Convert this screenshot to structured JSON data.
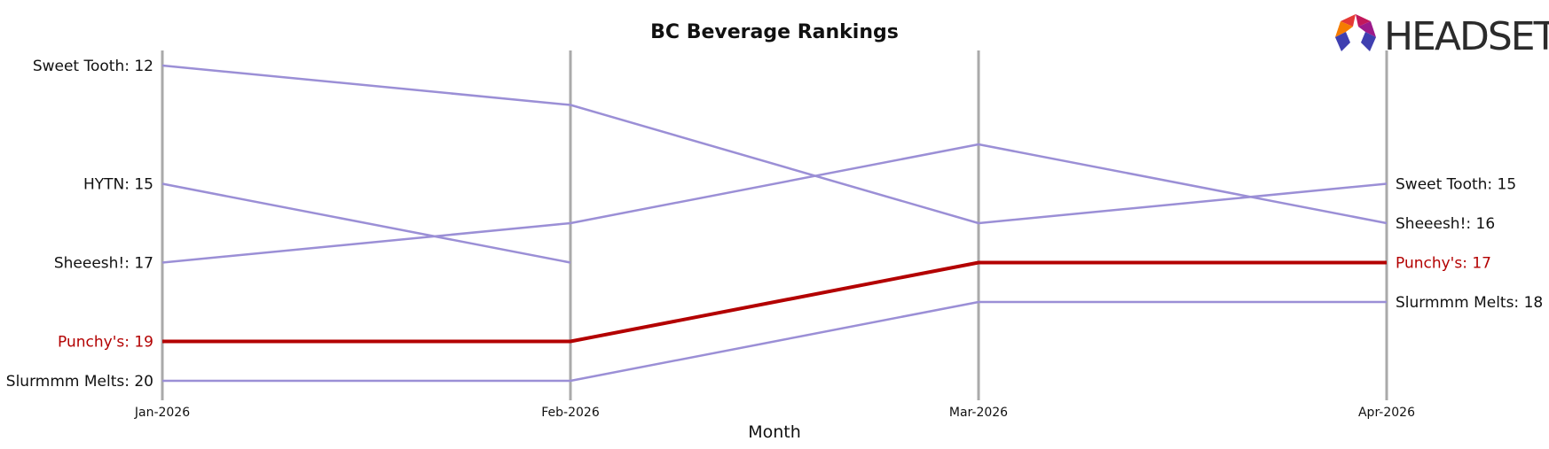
{
  "chart_data": {
    "type": "line",
    "title": "BC Beverage Rankings",
    "xlabel": "Month",
    "ylabel": "",
    "x": [
      "Jan-2026",
      "Feb-2026",
      "Mar-2026",
      "Apr-2026"
    ],
    "y_inverted": true,
    "ylim": [
      11.6,
      20.4
    ],
    "grid": false,
    "series": [
      {
        "name": "Sweet Tooth",
        "values": [
          12,
          13,
          16,
          15
        ],
        "color": "#9b8fd6",
        "highlight": false
      },
      {
        "name": "HYTN",
        "values": [
          15,
          17,
          null,
          null
        ],
        "color": "#9b8fd6",
        "highlight": false
      },
      {
        "name": "Sheeesh!",
        "values": [
          17,
          16,
          14,
          16
        ],
        "color": "#9b8fd6",
        "highlight": false
      },
      {
        "name": "Punchy's",
        "values": [
          19,
          19,
          17,
          17
        ],
        "color": "#b30000",
        "highlight": true
      },
      {
        "name": "Slurmmm Melts",
        "values": [
          20,
          20,
          18,
          18
        ],
        "color": "#9b8fd6",
        "highlight": false
      }
    ],
    "left_labels": [
      {
        "text": "Sweet Tooth: 12",
        "rank": 12,
        "highlight": false
      },
      {
        "text": "HYTN: 15",
        "rank": 15,
        "highlight": false
      },
      {
        "text": "Sheeesh!: 17",
        "rank": 17,
        "highlight": false
      },
      {
        "text": "Punchy's: 19",
        "rank": 19,
        "highlight": true
      },
      {
        "text": "Slurmmm Melts: 20",
        "rank": 20,
        "highlight": false
      }
    ],
    "right_labels": [
      {
        "text": "Sweet Tooth: 15",
        "rank": 15,
        "highlight": false
      },
      {
        "text": "Sheeesh!: 16",
        "rank": 16,
        "highlight": false
      },
      {
        "text": "Punchy's: 17",
        "rank": 17,
        "highlight": true
      },
      {
        "text": "Slurmmm Melts: 18",
        "rank": 18,
        "highlight": false
      }
    ],
    "colors": {
      "line": "#9b8fd6",
      "highlight": "#b30000",
      "month_axis": "#aaaaaa"
    }
  },
  "logo": {
    "text": "HEADSET"
  }
}
